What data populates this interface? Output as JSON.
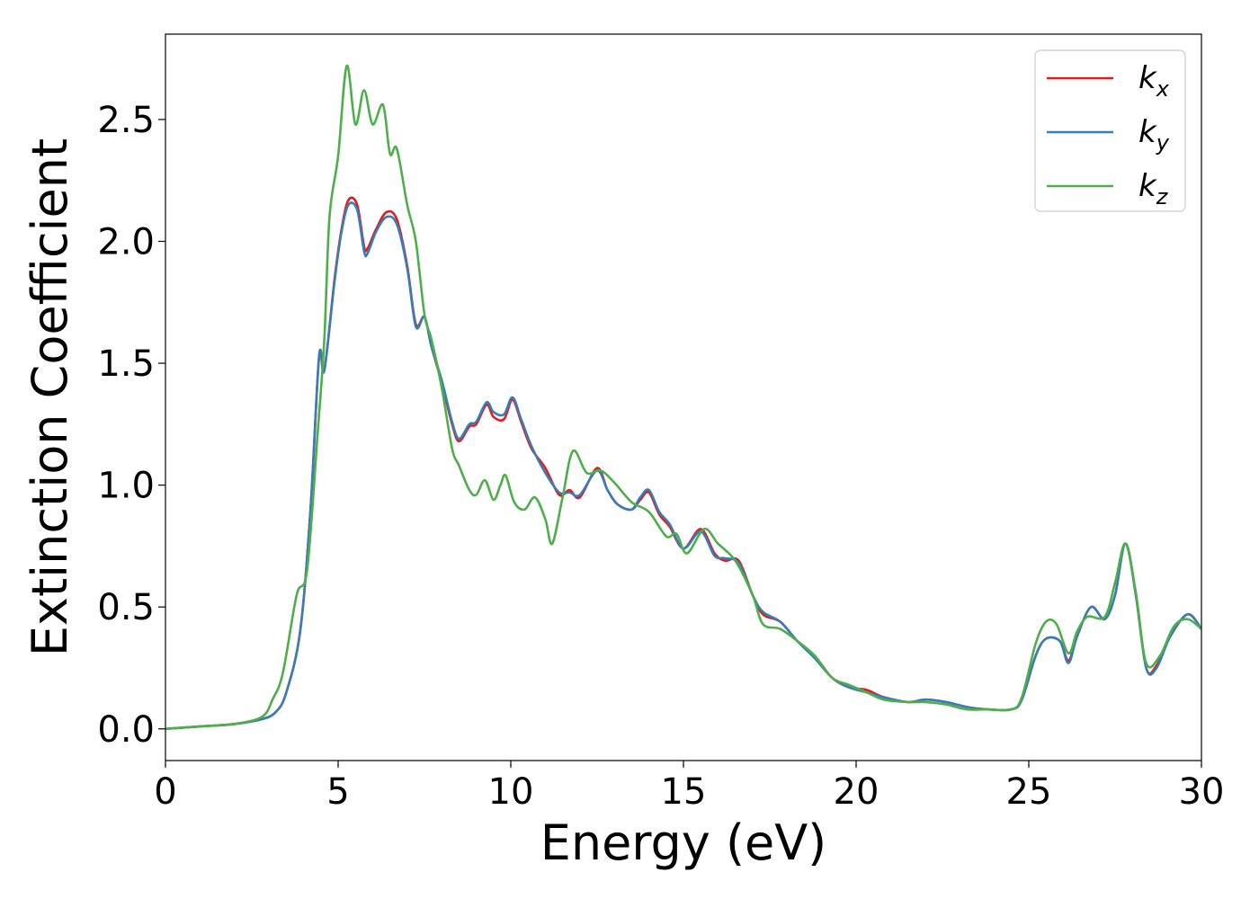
{
  "chart_data": {
    "type": "line",
    "title": "",
    "xlabel": "Energy (eV)",
    "ylabel": "Extinction Coefficient",
    "xlim": [
      0,
      30
    ],
    "ylim": [
      -0.13,
      2.85
    ],
    "xticks": [
      0,
      5,
      10,
      15,
      20,
      25,
      30
    ],
    "xtick_labels": [
      "0",
      "5",
      "10",
      "15",
      "20",
      "25",
      "30"
    ],
    "yticks": [
      0.0,
      0.5,
      1.0,
      1.5,
      2.0,
      2.5
    ],
    "ytick_labels": [
      "0.0",
      "0.5",
      "1.0",
      "1.5",
      "2.0",
      "2.5"
    ],
    "grid": false,
    "legend_position": "top-right",
    "series": [
      {
        "name": "k_x",
        "label_main": "k",
        "label_sub": "x",
        "color": "#e41a1c",
        "points": [
          [
            0,
            0.0
          ],
          [
            1,
            0.01
          ],
          [
            2,
            0.02
          ],
          [
            2.8,
            0.04
          ],
          [
            3.2,
            0.07
          ],
          [
            3.5,
            0.15
          ],
          [
            3.9,
            0.4
          ],
          [
            4.2,
            0.9
          ],
          [
            4.45,
            1.53
          ],
          [
            4.6,
            1.47
          ],
          [
            4.9,
            1.85
          ],
          [
            5.1,
            2.05
          ],
          [
            5.3,
            2.17
          ],
          [
            5.55,
            2.15
          ],
          [
            5.75,
            1.98
          ],
          [
            5.85,
            1.97
          ],
          [
            6.1,
            2.05
          ],
          [
            6.4,
            2.12
          ],
          [
            6.7,
            2.09
          ],
          [
            7.0,
            1.9
          ],
          [
            7.25,
            1.66
          ],
          [
            7.5,
            1.69
          ],
          [
            7.7,
            1.57
          ],
          [
            8.0,
            1.42
          ],
          [
            8.3,
            1.25
          ],
          [
            8.5,
            1.18
          ],
          [
            8.8,
            1.24
          ],
          [
            9.0,
            1.25
          ],
          [
            9.3,
            1.33
          ],
          [
            9.5,
            1.28
          ],
          [
            9.8,
            1.27
          ],
          [
            10.05,
            1.35
          ],
          [
            10.3,
            1.26
          ],
          [
            10.6,
            1.15
          ],
          [
            11.0,
            1.07
          ],
          [
            11.4,
            0.96
          ],
          [
            11.7,
            0.98
          ],
          [
            12.0,
            0.95
          ],
          [
            12.5,
            1.07
          ],
          [
            12.8,
            0.98
          ],
          [
            13.1,
            0.92
          ],
          [
            13.5,
            0.9
          ],
          [
            13.75,
            0.94
          ],
          [
            14.0,
            0.97
          ],
          [
            14.3,
            0.88
          ],
          [
            14.6,
            0.83
          ],
          [
            15.0,
            0.74
          ],
          [
            15.5,
            0.82
          ],
          [
            15.9,
            0.72
          ],
          [
            16.2,
            0.69
          ],
          [
            16.6,
            0.69
          ],
          [
            17.0,
            0.55
          ],
          [
            17.3,
            0.47
          ],
          [
            17.8,
            0.44
          ],
          [
            18.3,
            0.36
          ],
          [
            18.8,
            0.3
          ],
          [
            19.3,
            0.21
          ],
          [
            19.8,
            0.17
          ],
          [
            20.3,
            0.16
          ],
          [
            20.8,
            0.13
          ],
          [
            21.5,
            0.11
          ],
          [
            22.0,
            0.12
          ],
          [
            22.6,
            0.11
          ],
          [
            23.2,
            0.09
          ],
          [
            23.8,
            0.08
          ],
          [
            24.5,
            0.08
          ],
          [
            24.8,
            0.12
          ],
          [
            25.2,
            0.3
          ],
          [
            25.5,
            0.37
          ],
          [
            25.9,
            0.36
          ],
          [
            26.15,
            0.28
          ],
          [
            26.4,
            0.38
          ],
          [
            26.8,
            0.5
          ],
          [
            27.2,
            0.45
          ],
          [
            27.5,
            0.55
          ],
          [
            27.8,
            0.76
          ],
          [
            28.1,
            0.55
          ],
          [
            28.4,
            0.25
          ],
          [
            28.7,
            0.26
          ],
          [
            29.1,
            0.38
          ],
          [
            29.6,
            0.47
          ],
          [
            30,
            0.41
          ]
        ]
      },
      {
        "name": "k_y",
        "label_main": "k",
        "label_sub": "y",
        "color": "#377eb8",
        "points": [
          [
            0,
            0.0
          ],
          [
            1,
            0.01
          ],
          [
            2,
            0.02
          ],
          [
            2.8,
            0.04
          ],
          [
            3.2,
            0.07
          ],
          [
            3.5,
            0.15
          ],
          [
            3.9,
            0.4
          ],
          [
            4.2,
            0.9
          ],
          [
            4.45,
            1.53
          ],
          [
            4.6,
            1.47
          ],
          [
            4.9,
            1.84
          ],
          [
            5.1,
            2.04
          ],
          [
            5.3,
            2.15
          ],
          [
            5.55,
            2.13
          ],
          [
            5.75,
            1.96
          ],
          [
            5.85,
            1.95
          ],
          [
            6.1,
            2.04
          ],
          [
            6.4,
            2.1
          ],
          [
            6.7,
            2.07
          ],
          [
            7.0,
            1.89
          ],
          [
            7.25,
            1.65
          ],
          [
            7.5,
            1.69
          ],
          [
            7.7,
            1.57
          ],
          [
            8.0,
            1.43
          ],
          [
            8.3,
            1.26
          ],
          [
            8.5,
            1.19
          ],
          [
            8.8,
            1.25
          ],
          [
            9.0,
            1.26
          ],
          [
            9.3,
            1.34
          ],
          [
            9.5,
            1.3
          ],
          [
            9.8,
            1.29
          ],
          [
            10.05,
            1.36
          ],
          [
            10.3,
            1.27
          ],
          [
            10.6,
            1.16
          ],
          [
            11.0,
            1.05
          ],
          [
            11.4,
            0.97
          ],
          [
            11.7,
            0.97
          ],
          [
            12.0,
            0.96
          ],
          [
            12.5,
            1.06
          ],
          [
            12.8,
            0.98
          ],
          [
            13.1,
            0.92
          ],
          [
            13.5,
            0.9
          ],
          [
            13.75,
            0.95
          ],
          [
            14.0,
            0.98
          ],
          [
            14.3,
            0.89
          ],
          [
            14.6,
            0.84
          ],
          [
            15.0,
            0.74
          ],
          [
            15.5,
            0.81
          ],
          [
            15.9,
            0.71
          ],
          [
            16.2,
            0.7
          ],
          [
            16.6,
            0.68
          ],
          [
            17.0,
            0.55
          ],
          [
            17.3,
            0.48
          ],
          [
            17.8,
            0.44
          ],
          [
            18.3,
            0.36
          ],
          [
            18.8,
            0.29
          ],
          [
            19.3,
            0.21
          ],
          [
            19.8,
            0.17
          ],
          [
            20.3,
            0.15
          ],
          [
            20.8,
            0.13
          ],
          [
            21.5,
            0.11
          ],
          [
            22.0,
            0.12
          ],
          [
            22.6,
            0.11
          ],
          [
            23.2,
            0.09
          ],
          [
            23.8,
            0.08
          ],
          [
            24.5,
            0.08
          ],
          [
            24.8,
            0.12
          ],
          [
            25.2,
            0.3
          ],
          [
            25.5,
            0.37
          ],
          [
            25.9,
            0.36
          ],
          [
            26.15,
            0.27
          ],
          [
            26.4,
            0.38
          ],
          [
            26.8,
            0.5
          ],
          [
            27.2,
            0.45
          ],
          [
            27.5,
            0.55
          ],
          [
            27.8,
            0.76
          ],
          [
            28.1,
            0.55
          ],
          [
            28.4,
            0.25
          ],
          [
            28.7,
            0.25
          ],
          [
            29.1,
            0.38
          ],
          [
            29.6,
            0.47
          ],
          [
            30,
            0.41
          ]
        ]
      },
      {
        "name": "k_z",
        "label_main": "k",
        "label_sub": "z",
        "color": "#4daf4a",
        "points": [
          [
            0,
            0.0
          ],
          [
            1,
            0.01
          ],
          [
            2,
            0.02
          ],
          [
            2.8,
            0.05
          ],
          [
            3.1,
            0.12
          ],
          [
            3.4,
            0.23
          ],
          [
            3.8,
            0.55
          ],
          [
            4.1,
            0.65
          ],
          [
            4.4,
            1.2
          ],
          [
            4.6,
            1.6
          ],
          [
            4.75,
            2.1
          ],
          [
            5.0,
            2.35
          ],
          [
            5.25,
            2.72
          ],
          [
            5.5,
            2.48
          ],
          [
            5.75,
            2.62
          ],
          [
            6.0,
            2.48
          ],
          [
            6.3,
            2.56
          ],
          [
            6.5,
            2.36
          ],
          [
            6.7,
            2.38
          ],
          [
            7.0,
            2.15
          ],
          [
            7.25,
            2.0
          ],
          [
            7.5,
            1.7
          ],
          [
            7.7,
            1.6
          ],
          [
            8.0,
            1.4
          ],
          [
            8.3,
            1.15
          ],
          [
            8.5,
            1.08
          ],
          [
            8.8,
            0.98
          ],
          [
            9.0,
            0.96
          ],
          [
            9.25,
            1.02
          ],
          [
            9.5,
            0.94
          ],
          [
            9.7,
            1.0
          ],
          [
            9.85,
            1.04
          ],
          [
            10.1,
            0.93
          ],
          [
            10.4,
            0.9
          ],
          [
            10.7,
            0.95
          ],
          [
            11.0,
            0.86
          ],
          [
            11.2,
            0.76
          ],
          [
            11.5,
            0.95
          ],
          [
            11.8,
            1.14
          ],
          [
            12.2,
            1.05
          ],
          [
            12.6,
            1.06
          ],
          [
            13.0,
            1.01
          ],
          [
            13.5,
            0.93
          ],
          [
            14.0,
            0.89
          ],
          [
            14.5,
            0.79
          ],
          [
            14.8,
            0.8
          ],
          [
            15.1,
            0.72
          ],
          [
            15.6,
            0.82
          ],
          [
            16.0,
            0.76
          ],
          [
            16.5,
            0.69
          ],
          [
            17.0,
            0.55
          ],
          [
            17.3,
            0.43
          ],
          [
            17.8,
            0.41
          ],
          [
            18.3,
            0.36
          ],
          [
            18.8,
            0.3
          ],
          [
            19.3,
            0.21
          ],
          [
            19.8,
            0.18
          ],
          [
            20.3,
            0.15
          ],
          [
            20.8,
            0.12
          ],
          [
            21.5,
            0.11
          ],
          [
            22.0,
            0.11
          ],
          [
            22.6,
            0.1
          ],
          [
            23.2,
            0.08
          ],
          [
            23.8,
            0.08
          ],
          [
            24.5,
            0.08
          ],
          [
            24.8,
            0.13
          ],
          [
            25.2,
            0.35
          ],
          [
            25.5,
            0.44
          ],
          [
            25.8,
            0.43
          ],
          [
            26.15,
            0.31
          ],
          [
            26.4,
            0.4
          ],
          [
            26.7,
            0.46
          ],
          [
            27.2,
            0.46
          ],
          [
            27.5,
            0.6
          ],
          [
            27.8,
            0.76
          ],
          [
            28.1,
            0.56
          ],
          [
            28.4,
            0.27
          ],
          [
            28.8,
            0.3
          ],
          [
            29.2,
            0.42
          ],
          [
            29.6,
            0.45
          ],
          [
            30,
            0.41
          ]
        ]
      }
    ]
  }
}
